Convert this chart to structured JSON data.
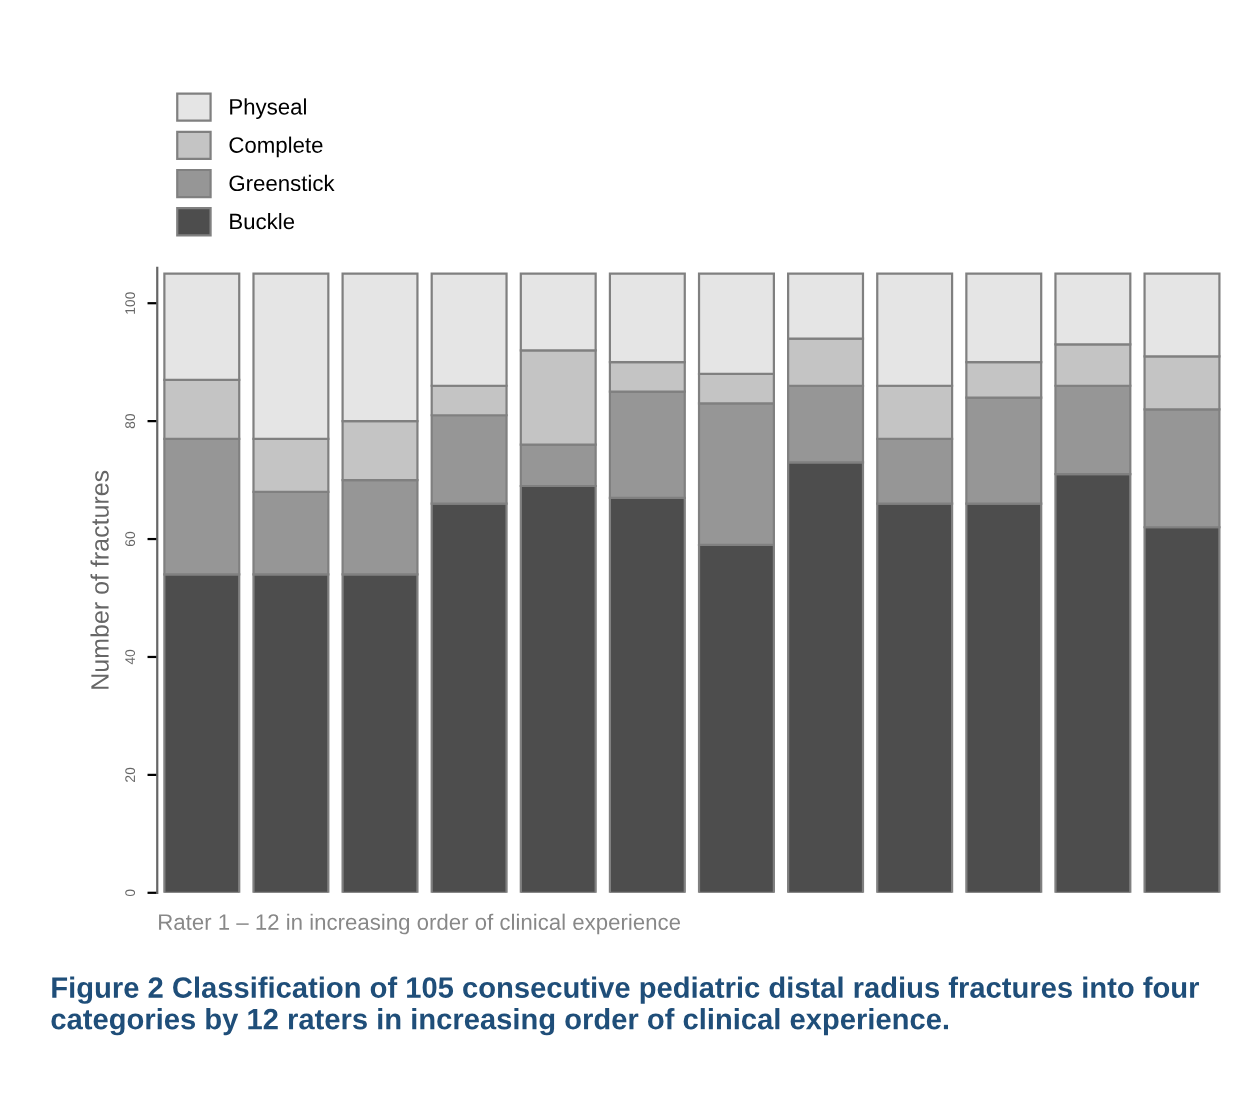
{
  "chart_data": {
    "type": "bar",
    "stacked": true,
    "categories": [
      null,
      null,
      null,
      null,
      null,
      null,
      null,
      null,
      null,
      null,
      null,
      null
    ],
    "series": [
      {
        "name": "Buckle",
        "color": "#4d4d4d",
        "values": [
          54,
          54,
          54,
          66,
          69,
          67,
          59,
          73,
          66,
          66,
          71,
          62
        ]
      },
      {
        "name": "Greenstick",
        "color": "#969696",
        "values": [
          23,
          14,
          16,
          15,
          7,
          18,
          24,
          13,
          11,
          18,
          15,
          20
        ]
      },
      {
        "name": "Complete",
        "color": "#c4c4c4",
        "values": [
          10,
          9,
          10,
          5,
          16,
          5,
          5,
          8,
          9,
          6,
          7,
          9
        ]
      },
      {
        "name": "Physeal",
        "color": "#e5e5e5",
        "values": [
          18,
          28,
          25,
          19,
          13,
          15,
          17,
          11,
          19,
          15,
          12,
          14
        ]
      }
    ],
    "ylabel": "Number of fractures",
    "xlabel": "Rater 1 – 12 in increasing order of clinical experience",
    "ylim": [
      0,
      106
    ],
    "yticks": [
      0,
      20,
      40,
      60,
      80,
      100
    ],
    "grid": false,
    "legend": "top left",
    "annotations": [
      "Figure 2 Classification of 105 consecutive pediatric distal radius fractures into four categories by 12 raters in increasing order of clinical experience."
    ]
  }
}
